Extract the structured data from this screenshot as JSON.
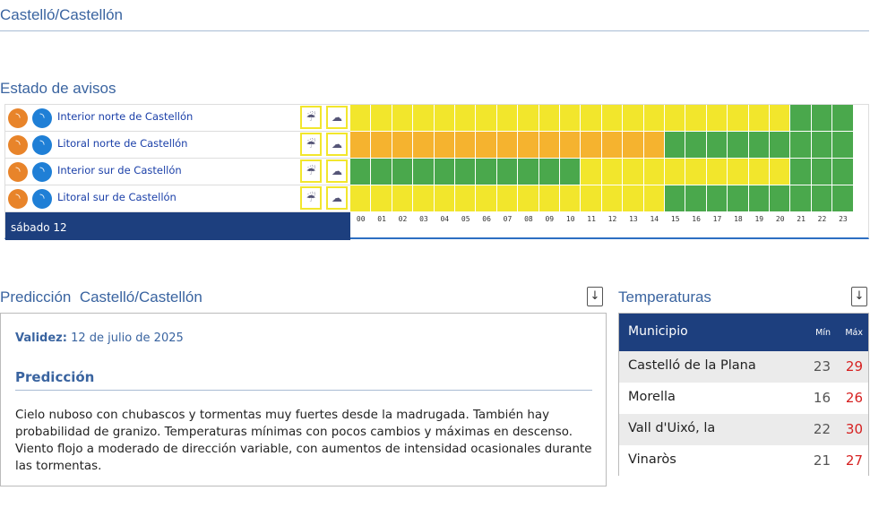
{
  "header": {
    "title": "Castelló/Castellón"
  },
  "warnings": {
    "title": "Estado de avisos",
    "day": "sábado 12",
    "hours": [
      "00",
      "01",
      "02",
      "03",
      "04",
      "05",
      "06",
      "07",
      "08",
      "09",
      "10",
      "11",
      "12",
      "13",
      "14",
      "15",
      "16",
      "17",
      "18",
      "19",
      "20",
      "21",
      "22",
      "23"
    ],
    "level_colors": {
      "yellow": "#f2e62c",
      "orange": "#f5b32f",
      "green": "#4aa84c"
    },
    "zones": [
      {
        "name": "Interior norte de Castellón",
        "levels": [
          "yellow",
          "yellow",
          "yellow",
          "yellow",
          "yellow",
          "yellow",
          "yellow",
          "yellow",
          "yellow",
          "yellow",
          "yellow",
          "yellow",
          "yellow",
          "yellow",
          "yellow",
          "yellow",
          "yellow",
          "yellow",
          "yellow",
          "yellow",
          "yellow",
          "green",
          "green",
          "green"
        ]
      },
      {
        "name": "Litoral norte de Castellón",
        "levels": [
          "orange",
          "orange",
          "orange",
          "orange",
          "orange",
          "orange",
          "orange",
          "orange",
          "orange",
          "orange",
          "orange",
          "orange",
          "orange",
          "orange",
          "orange",
          "green",
          "green",
          "green",
          "green",
          "green",
          "green",
          "green",
          "green",
          "green"
        ]
      },
      {
        "name": "Interior sur de Castellón",
        "levels": [
          "green",
          "green",
          "green",
          "green",
          "green",
          "green",
          "green",
          "green",
          "green",
          "green",
          "green",
          "yellow",
          "yellow",
          "yellow",
          "yellow",
          "yellow",
          "yellow",
          "yellow",
          "yellow",
          "yellow",
          "yellow",
          "green",
          "green",
          "green"
        ]
      },
      {
        "name": "Litoral sur de Castellón",
        "levels": [
          "yellow",
          "yellow",
          "yellow",
          "yellow",
          "yellow",
          "yellow",
          "yellow",
          "yellow",
          "yellow",
          "yellow",
          "yellow",
          "yellow",
          "yellow",
          "yellow",
          "yellow",
          "green",
          "green",
          "green",
          "green",
          "green",
          "green",
          "green",
          "green",
          "green"
        ]
      }
    ]
  },
  "prediction": {
    "title": "Predicción",
    "place": "Castelló/Castellón",
    "validity_label": "Validez:",
    "validity": "12 de julio de 2025",
    "heading": "Predicción",
    "text": "Cielo nuboso con chubascos y tormentas muy fuertes desde la madrugada. También hay probabilidad de granizo. Temperaturas mínimas con pocos cambios y máximas en descenso. Viento flojo a moderado de dirección variable, con aumentos de intensidad ocasionales durante las tormentas."
  },
  "temperatures": {
    "title": "Temperaturas",
    "columns": [
      "Municipio",
      "Mín",
      "Máx"
    ],
    "rows": [
      [
        "Castelló de la Plana",
        23,
        29
      ],
      [
        "Morella",
        16,
        26
      ],
      [
        "Vall d'Uixó, la",
        22,
        30
      ],
      [
        "Vinaròs",
        21,
        27
      ]
    ]
  }
}
